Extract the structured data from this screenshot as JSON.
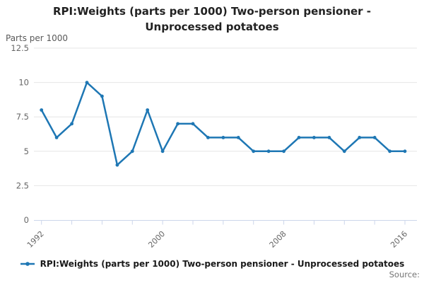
{
  "title": "RPI:Weights (parts per 1000) Two-person pensioner - Unprocessed potatoes",
  "y_axis_title": "Parts per 1000",
  "legend": {
    "label": "RPI:Weights (parts per 1000) Two-person pensioner - Unprocessed potatoes"
  },
  "source_label": "Source:",
  "colors": {
    "line": "#1e77b4",
    "grid": "#e6e6e6",
    "axis": "#ccd6eb",
    "axis_label": "#666666",
    "title": "#222222",
    "source": "#757575"
  },
  "chart_data": {
    "type": "line",
    "title": "RPI:Weights (parts per 1000) Two-person pensioner - Unprocessed potatoes",
    "xlabel": "",
    "ylabel": "Parts per 1000",
    "x": [
      1992,
      1993,
      1994,
      1995,
      1996,
      1997,
      1998,
      1999,
      2000,
      2001,
      2002,
      2003,
      2004,
      2005,
      2006,
      2007,
      2008,
      2009,
      2010,
      2011,
      2012,
      2013,
      2014,
      2015,
      2016
    ],
    "values": [
      8,
      6,
      7,
      10,
      9,
      4,
      5,
      8,
      5,
      7,
      7,
      6,
      6,
      6,
      5,
      5,
      5,
      6,
      6,
      6,
      5,
      6,
      6,
      5,
      5
    ],
    "ylim": [
      0,
      12.5
    ],
    "yticks": [
      0,
      2.5,
      5,
      7.5,
      10,
      12.5
    ],
    "xtick_step_years": 2,
    "xticks_labeled": [
      1992,
      2000,
      2008,
      2016
    ],
    "grid": true,
    "legend_position": "bottom",
    "marker": "point"
  }
}
